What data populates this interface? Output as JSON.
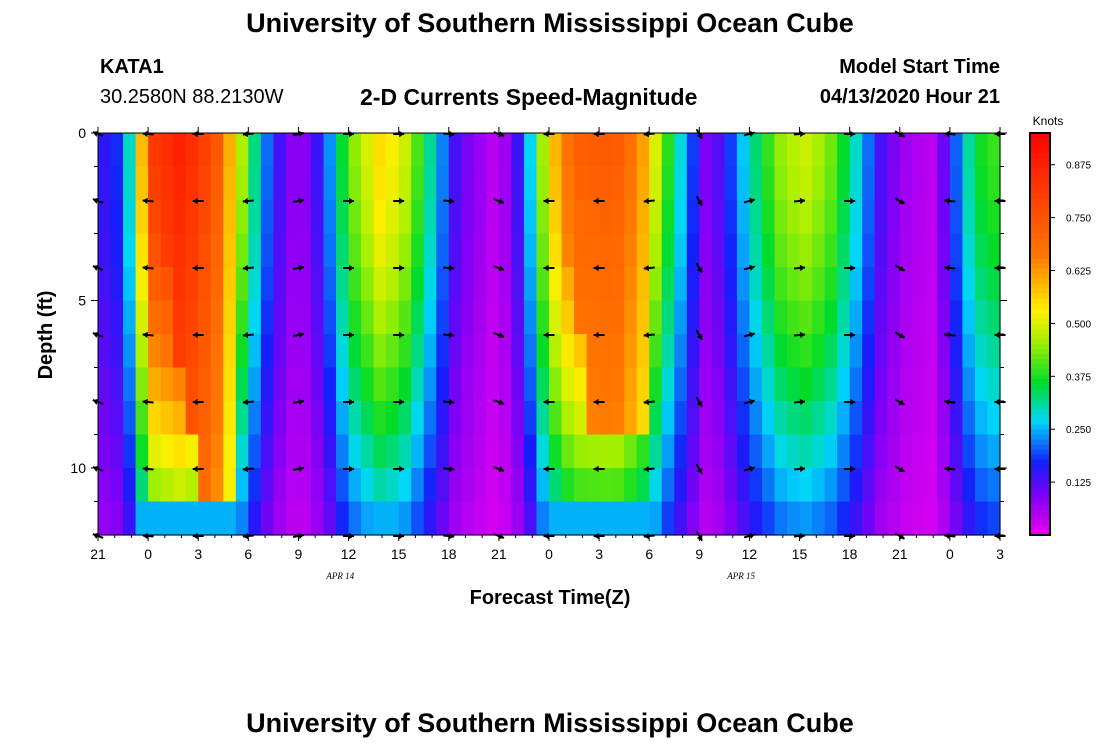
{
  "header": {
    "title": "University of Southern Mississippi Ocean Cube",
    "station_id": "KATA1",
    "station_coords": "30.2580N 88.2130W",
    "plot_title": "2-D Currents Speed-Magnitude",
    "model_start_label": "Model Start Time",
    "model_start_value": "04/13/2020 Hour 21"
  },
  "footer": {
    "title": "University of Southern Mississippi Ocean Cube"
  },
  "chart_data": {
    "type": "heatmap",
    "title": "2-D Currents Speed-Magnitude",
    "xlabel": "Forecast Time(Z)",
    "ylabel": "Depth (ft)",
    "x_hours": [
      0,
      3,
      6,
      9,
      12,
      15,
      18,
      21,
      24,
      27,
      30,
      33,
      36,
      39,
      42,
      45,
      48,
      51,
      54
    ],
    "x_tick_labels": [
      "21",
      "0",
      "3",
      "6",
      "9",
      "12",
      "15",
      "18",
      "21",
      "0",
      "3",
      "6",
      "9",
      "12",
      "15",
      "18",
      "21",
      "0",
      "3"
    ],
    "date_labels": [
      {
        "text": "APR 14",
        "hour": 14.5
      },
      {
        "text": "APR 15",
        "hour": 38.5
      }
    ],
    "y_ticks": [
      0,
      5,
      10
    ],
    "ylim": [
      0,
      12
    ],
    "colorbar": {
      "label": "Knots",
      "range": [
        0,
        0.95
      ],
      "ticks": [
        "0.875",
        "0.750",
        "0.625",
        "0.500",
        "0.375",
        "0.250",
        "0.125"
      ],
      "tick_values": [
        0.875,
        0.75,
        0.625,
        0.5,
        0.375,
        0.25,
        0.125
      ]
    },
    "speed_profile_surface": [
      {
        "hour": 0,
        "speed": 0.14
      },
      {
        "hour": 1.2,
        "speed": 0.18
      },
      {
        "hour": 2.2,
        "speed": 0.35
      },
      {
        "hour": 3,
        "speed": 0.8
      },
      {
        "hour": 5,
        "speed": 0.88
      },
      {
        "hour": 7,
        "speed": 0.76
      },
      {
        "hour": 8,
        "speed": 0.58
      },
      {
        "hour": 9.5,
        "speed": 0.3
      },
      {
        "hour": 10.5,
        "speed": 0.16
      },
      {
        "hour": 12,
        "speed": 0.06
      },
      {
        "hour": 13.5,
        "speed": 0.17
      },
      {
        "hour": 15,
        "speed": 0.42
      },
      {
        "hour": 17,
        "speed": 0.56
      },
      {
        "hour": 18.5,
        "speed": 0.48
      },
      {
        "hour": 20,
        "speed": 0.3
      },
      {
        "hour": 21.5,
        "speed": 0.12
      },
      {
        "hour": 24,
        "speed": 0.03
      },
      {
        "hour": 25.5,
        "speed": 0.18
      },
      {
        "hour": 27,
        "speed": 0.55
      },
      {
        "hour": 28.5,
        "speed": 0.72
      },
      {
        "hour": 31,
        "speed": 0.74
      },
      {
        "hour": 32.5,
        "speed": 0.64
      },
      {
        "hour": 34,
        "speed": 0.4
      },
      {
        "hour": 35.5,
        "speed": 0.2
      },
      {
        "hour": 36.5,
        "speed": 0.08
      },
      {
        "hour": 37.5,
        "speed": 0.15
      },
      {
        "hour": 39,
        "speed": 0.3
      },
      {
        "hour": 41,
        "speed": 0.46
      },
      {
        "hour": 42.5,
        "speed": 0.49
      },
      {
        "hour": 44,
        "speed": 0.42
      },
      {
        "hour": 45.5,
        "speed": 0.28
      },
      {
        "hour": 47,
        "speed": 0.12
      },
      {
        "hour": 48.5,
        "speed": 0.06
      },
      {
        "hour": 50,
        "speed": 0.04
      },
      {
        "hour": 51,
        "speed": 0.15
      },
      {
        "hour": 52,
        "speed": 0.3
      },
      {
        "hour": 53,
        "speed": 0.38
      },
      {
        "hour": 54,
        "speed": 0.4
      }
    ],
    "high_speed_cores": [
      {
        "hour_start": 3,
        "hour_end": 8,
        "depth_limit_ft": 12,
        "peak_speed": 0.88
      },
      {
        "hour_start": 27,
        "hour_end": 33,
        "depth_limit_ft": 9,
        "peak_speed": 0.74
      }
    ],
    "vector_rows_depth_ft": [
      0,
      2,
      4,
      6,
      8,
      10,
      12
    ],
    "vector_columns_hour": [
      0,
      3,
      6,
      9,
      12,
      15,
      18,
      21,
      24,
      27,
      30,
      33,
      36,
      39,
      42,
      45,
      48,
      51,
      54
    ],
    "vector_direction_deg": [
      160,
      175,
      180,
      185,
      10,
      0,
      0,
      355,
      340,
      180,
      180,
      185,
      300,
      15,
      5,
      0,
      330,
      175,
      180
    ]
  }
}
